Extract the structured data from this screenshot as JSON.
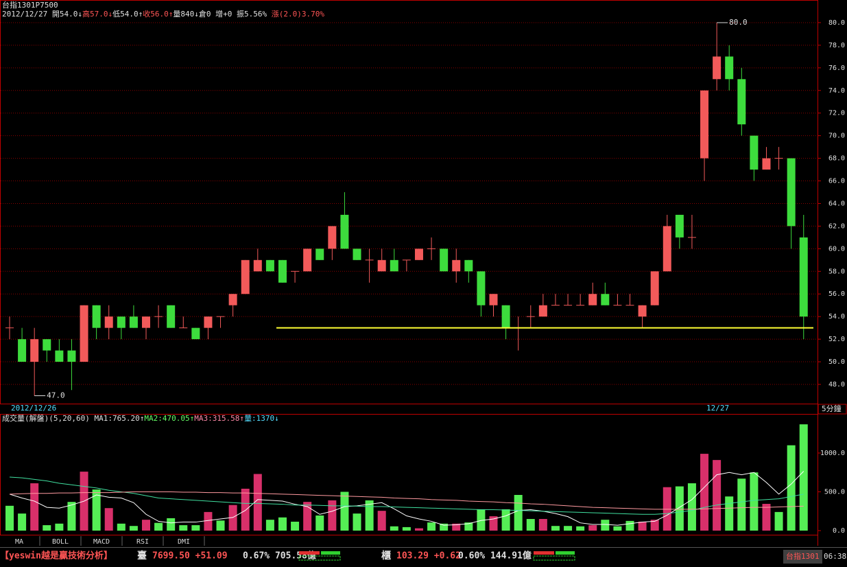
{
  "header": {
    "title": "台指1301P7500",
    "items": [
      "2012/12/27",
      "開54.0↓",
      "高57.0↓",
      "低54.0↑",
      "收56.0↑",
      "量840↓",
      "倉0",
      "增+0",
      "振5.56%",
      "漲(2.0)3.70%"
    ]
  },
  "chart_data": [
    {
      "type": "candlestick",
      "up_color": "#f25a5a",
      "down_color": "#3ddc3d",
      "open": [
        53,
        52,
        50,
        52,
        51,
        51,
        50,
        55,
        53,
        54,
        54,
        53,
        54,
        55,
        53,
        53,
        53,
        54,
        55,
        56,
        58,
        59,
        59,
        58,
        58,
        60,
        60,
        63,
        60,
        59,
        58,
        59,
        59,
        59,
        60,
        60,
        58,
        59,
        58,
        55,
        55,
        53,
        54,
        54,
        55,
        55,
        55,
        55,
        56,
        55,
        55,
        54,
        55,
        58,
        63,
        61,
        68,
        75,
        77,
        75,
        70,
        67,
        68,
        68,
        61
      ],
      "high": [
        54,
        53,
        53,
        52,
        52,
        52,
        55,
        55,
        55,
        54,
        55,
        54,
        55,
        55,
        54,
        53,
        54,
        54,
        56,
        59,
        60,
        59,
        59,
        58,
        60,
        60,
        62,
        65,
        60,
        60,
        60,
        60,
        59,
        60,
        61,
        60,
        60,
        59,
        58,
        56,
        55,
        54,
        55,
        56,
        56,
        56,
        56,
        57,
        57,
        56,
        56,
        55,
        58,
        63,
        63,
        63,
        74,
        80,
        78,
        76,
        70,
        69,
        69,
        68,
        63
      ],
      "low": [
        52,
        50,
        47,
        50,
        50,
        47.5,
        50,
        52,
        52,
        52,
        53,
        52,
        53,
        53,
        53,
        52,
        52,
        53,
        54,
        56,
        58,
        58,
        57,
        57,
        58,
        59,
        59,
        60,
        59,
        57,
        58,
        58,
        58,
        59,
        59,
        58,
        57,
        57,
        54,
        54,
        52,
        51,
        53,
        54,
        55,
        55,
        55,
        55,
        55,
        55,
        55,
        53,
        55,
        58,
        60,
        60,
        66,
        74,
        74,
        70,
        66,
        67,
        67,
        60,
        52
      ],
      "close": [
        53,
        50,
        52,
        51,
        50,
        50,
        55,
        53,
        54,
        53,
        53,
        54,
        54,
        53,
        53,
        52,
        54,
        54,
        56,
        59,
        59,
        58,
        57,
        58,
        60,
        59,
        62,
        60,
        59,
        59,
        59,
        58,
        59,
        60,
        60,
        58,
        59,
        58,
        55,
        56,
        53,
        53,
        54,
        55,
        55,
        55,
        55,
        56,
        55,
        55,
        55,
        55,
        58,
        62,
        61,
        61,
        74,
        77,
        75,
        71,
        67,
        68,
        68,
        62,
        54
      ],
      "ylim": [
        46.3,
        82.0
      ],
      "yticks": [
        {
          "value": 48,
          "label": "48.0"
        },
        {
          "value": 50,
          "label": "50.0"
        },
        {
          "value": 52,
          "label": "52.0"
        },
        {
          "value": 54,
          "label": "54.0"
        },
        {
          "value": 56,
          "label": "56.0"
        },
        {
          "value": 58,
          "label": "58.0"
        },
        {
          "value": 60,
          "label": "60.0"
        },
        {
          "value": 62,
          "label": "62.0"
        },
        {
          "value": 64,
          "label": "64.0"
        },
        {
          "value": 66,
          "label": "66.0"
        },
        {
          "value": 68,
          "label": "68.0"
        },
        {
          "value": 70,
          "label": "70.0"
        },
        {
          "value": 72,
          "label": "72.0"
        },
        {
          "value": 74,
          "label": "74.0"
        },
        {
          "value": 76,
          "label": "76.0"
        },
        {
          "value": 78,
          "label": "78.0"
        },
        {
          "value": 80,
          "label": "80.0"
        }
      ],
      "grid": true,
      "annotations": {
        "max": "80.0",
        "min": "47.0"
      },
      "hline": {
        "value": 53,
        "color": "#ffff33"
      },
      "date_labels": [
        "2012/12/26",
        "12/27"
      ],
      "period": "5分鐘"
    },
    {
      "type": "bar",
      "title": "成交量(解盤)(5,20,60)",
      "legend": [
        "MA1:765.20↑",
        "MA2:470.05↑",
        "MA3:315.58↑",
        "量:1370↓"
      ],
      "values": [
        320,
        220,
        610,
        70,
        90,
        370,
        760,
        530,
        290,
        90,
        60,
        140,
        100,
        160,
        70,
        70,
        240,
        130,
        330,
        540,
        730,
        140,
        170,
        115,
        370,
        195,
        390,
        500,
        220,
        390,
        255,
        55,
        45,
        30,
        105,
        90,
        90,
        105,
        275,
        185,
        275,
        460,
        150,
        150,
        60,
        60,
        55,
        70,
        140,
        55,
        125,
        115,
        140,
        560,
        570,
        610,
        990,
        910,
        440,
        670,
        750,
        345,
        240,
        1100,
        1370
      ],
      "series": [
        {
          "name": "MA1",
          "color": "#ffffff",
          "values": [
            470,
            420,
            380,
            300,
            290,
            330,
            380,
            460,
            430,
            420,
            360,
            210,
            120,
            100,
            110,
            110,
            130,
            150,
            170,
            260,
            400,
            390,
            380,
            340,
            310,
            210,
            250,
            310,
            320,
            340,
            360,
            280,
            190,
            150,
            120,
            70,
            75,
            90,
            130,
            150,
            190,
            260,
            270,
            250,
            220,
            180,
            100,
            80,
            80,
            70,
            90,
            110,
            120,
            200,
            300,
            400,
            560,
            720,
            750,
            720,
            750,
            620,
            470,
            600,
            765.2
          ]
        },
        {
          "name": "MA2",
          "color": "#40e0a0",
          "values": [
            690,
            680,
            660,
            640,
            610,
            590,
            570,
            550,
            520,
            500,
            480,
            450,
            420,
            410,
            400,
            390,
            380,
            370,
            360,
            350,
            350,
            345,
            340,
            330,
            330,
            325,
            320,
            320,
            315,
            310,
            310,
            305,
            300,
            295,
            290,
            285,
            280,
            275,
            270,
            270,
            265,
            260,
            255,
            250,
            245,
            240,
            235,
            230,
            225,
            220,
            215,
            210,
            210,
            220,
            240,
            260,
            300,
            330,
            350,
            370,
            390,
            400,
            410,
            440,
            470.05
          ]
        },
        {
          "name": "MA3",
          "color": "#ff9aa0",
          "values": [
            470,
            475,
            480,
            480,
            485,
            485,
            490,
            490,
            490,
            495,
            500,
            500,
            500,
            500,
            495,
            495,
            490,
            490,
            485,
            485,
            480,
            475,
            470,
            465,
            460,
            455,
            450,
            445,
            440,
            435,
            430,
            420,
            415,
            410,
            400,
            395,
            390,
            380,
            375,
            370,
            360,
            355,
            345,
            340,
            330,
            320,
            310,
            300,
            295,
            290,
            285,
            280,
            275,
            275,
            275,
            275,
            280,
            285,
            290,
            295,
            300,
            300,
            305,
            310,
            315.58
          ]
        }
      ],
      "up_color": "#d8306a",
      "down_color": "#55ee55",
      "ylim": [
        -62,
        1504
      ],
      "yticks": [
        {
          "value": 0,
          "label": "0.0"
        },
        {
          "value": 500,
          "label": "500.0"
        },
        {
          "value": 1000,
          "label": "1000.0"
        }
      ]
    }
  ],
  "tabs": [
    "MA",
    "BOLL",
    "MACD",
    "RSI",
    "DMI"
  ],
  "ticker": {
    "brand": "【yeswin越是贏技術分析】",
    "twse": "臺",
    "twse_price": "7699.50 +51.09",
    "twse_stats": "0.67% 705.58億",
    "otc": "櫃",
    "otc_price": "103.29 +0.62",
    "otc_stats": "0.60% 144.91億",
    "symbol": "台指1301",
    "time": "06:38"
  }
}
